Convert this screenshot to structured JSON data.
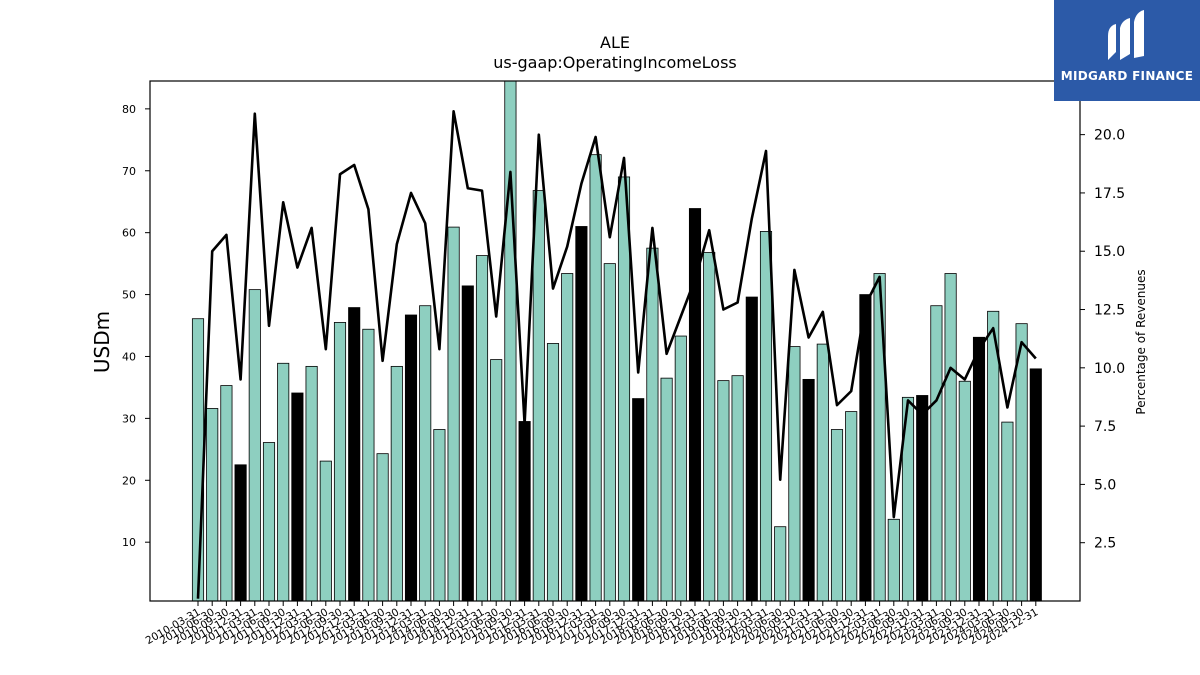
{
  "chart_data": {
    "type": "bar",
    "title": "ALE",
    "subtitle": "us-gaap:OperatingIncomeLoss",
    "ylabel": "USDm",
    "y2label": "Percentage of Revenues",
    "ylim": [
      0.5,
      84.5
    ],
    "y2lim": [
      0.0,
      22.3
    ],
    "yticks": [
      10,
      20,
      30,
      40,
      50,
      60,
      70,
      80
    ],
    "y2ticks": [
      2.5,
      5.0,
      7.5,
      10.0,
      12.5,
      15.0,
      17.5,
      20.0
    ],
    "bar_color": "#8ecfc0",
    "highlight_color": "#000000",
    "line_color": "#000000",
    "categories": [
      "2010-03-31",
      "2010-06-30",
      "2010-09-30",
      "2010-12-31",
      "2011-03-31",
      "2011-06-30",
      "2011-09-30",
      "2011-12-31",
      "2012-03-31",
      "2012-06-30",
      "2012-09-30",
      "2012-12-31",
      "2013-03-31",
      "2013-06-30",
      "2013-09-30",
      "2013-12-31",
      "2014-03-31",
      "2014-06-30",
      "2014-09-30",
      "2014-12-31",
      "2015-03-31",
      "2015-06-30",
      "2015-09-30",
      "2015-12-31",
      "2016-03-31",
      "2016-06-30",
      "2016-09-30",
      "2016-12-31",
      "2017-03-31",
      "2017-06-30",
      "2017-09-30",
      "2017-12-31",
      "2018-03-31",
      "2018-06-30",
      "2018-09-30",
      "2018-12-31",
      "2019-03-31",
      "2019-06-30",
      "2019-09-30",
      "2019-12-31",
      "2020-03-31",
      "2020-06-30",
      "2020-09-30",
      "2020-12-31",
      "2021-03-31",
      "2021-06-30",
      "2021-09-30",
      "2021-12-31",
      "2022-03-31",
      "2022-06-30",
      "2022-09-30",
      "2022-12-31",
      "2023-03-31",
      "2023-06-30",
      "2023-09-30",
      "2023-12-31",
      "2024-03-31",
      "2024-06-30",
      "2024-09-30",
      "2024-12-31"
    ],
    "values": [
      46.1,
      31.6,
      35.3,
      22.5,
      50.8,
      26.1,
      38.9,
      34.1,
      38.4,
      23.1,
      45.5,
      47.9,
      44.4,
      24.3,
      38.4,
      46.7,
      48.2,
      28.2,
      60.9,
      51.4,
      56.3,
      39.5,
      85.0,
      29.5,
      66.8,
      42.1,
      53.4,
      61.0,
      72.6,
      55.0,
      69.0,
      33.2,
      57.5,
      36.5,
      43.3,
      63.9,
      56.8,
      36.1,
      36.9,
      49.6,
      60.2,
      12.5,
      41.6,
      36.3,
      42.0,
      28.2,
      31.1,
      50.0,
      53.4,
      13.7,
      33.4,
      33.7,
      48.2,
      53.4,
      36.0,
      43.1,
      47.3,
      29.4,
      45.3,
      38.0
    ],
    "highlighted": [
      false,
      false,
      false,
      true,
      false,
      false,
      false,
      true,
      false,
      false,
      false,
      true,
      false,
      false,
      false,
      true,
      false,
      false,
      false,
      true,
      false,
      false,
      false,
      true,
      false,
      false,
      false,
      true,
      false,
      false,
      false,
      true,
      false,
      false,
      false,
      true,
      false,
      false,
      false,
      true,
      false,
      false,
      false,
      true,
      false,
      false,
      false,
      true,
      false,
      false,
      false,
      true,
      false,
      false,
      false,
      true,
      false,
      false,
      false,
      true
    ],
    "line_values": [
      0.1,
      15.0,
      15.7,
      9.5,
      20.9,
      11.8,
      17.1,
      14.3,
      16.0,
      10.8,
      18.3,
      18.7,
      16.8,
      10.3,
      15.3,
      17.5,
      16.2,
      10.8,
      21.0,
      17.7,
      17.6,
      12.2,
      18.4,
      7.6,
      20.0,
      13.4,
      15.2,
      17.9,
      19.9,
      15.6,
      19.0,
      9.8,
      16.0,
      10.6,
      12.2,
      13.8,
      15.9,
      12.5,
      12.8,
      16.4,
      19.3,
      5.2,
      14.2,
      11.3,
      12.4,
      8.4,
      9.0,
      12.7,
      13.9,
      3.6,
      8.6,
      8.0,
      8.6,
      10.0,
      9.5,
      10.8,
      11.7,
      8.3,
      11.1,
      10.4
    ]
  },
  "logo": {
    "text": "MIDGARD FINANCE",
    "icon": "midgard-logo-icon"
  }
}
